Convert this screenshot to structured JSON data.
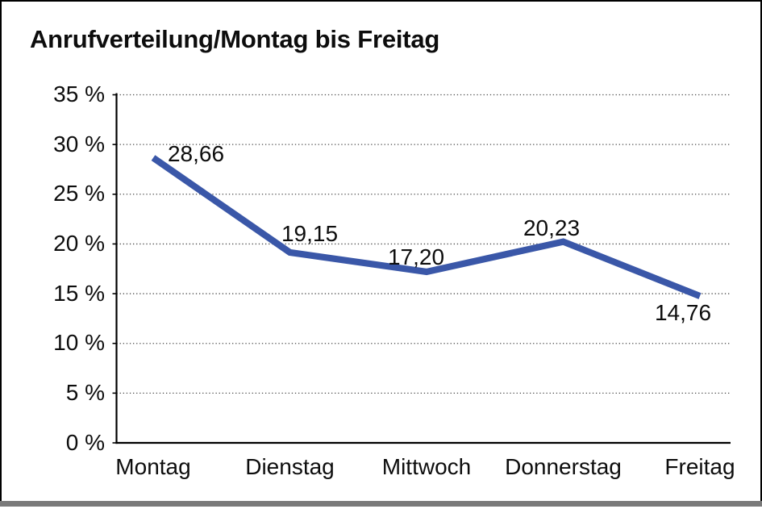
{
  "chart_data": {
    "type": "line",
    "title": "Anrufverteilung/Montag bis Freitag",
    "categories": [
      "Montag",
      "Dienstag",
      "Mittwoch",
      "Donnerstag",
      "Freitag"
    ],
    "values": [
      28.66,
      19.15,
      17.2,
      20.23,
      14.76
    ],
    "value_labels": [
      "28,66",
      "19,15",
      "17,20",
      "20,23",
      "14,76"
    ],
    "xlabel": "",
    "ylabel": "",
    "ylim": [
      0,
      35
    ],
    "y_tick_step": 5,
    "y_tick_labels": [
      "0 %",
      "5 %",
      "10 %",
      "15 %",
      "20 %",
      "25 %",
      "30 %",
      "35 %"
    ],
    "grid": "horizontal-dotted",
    "legend": "none",
    "line_color": "#3A57A8",
    "axis_color": "#000000",
    "gridline_color": "#4a4a4a",
    "frame_border_color": "#000000",
    "bottom_edge_color": "#7a7a7a"
  }
}
